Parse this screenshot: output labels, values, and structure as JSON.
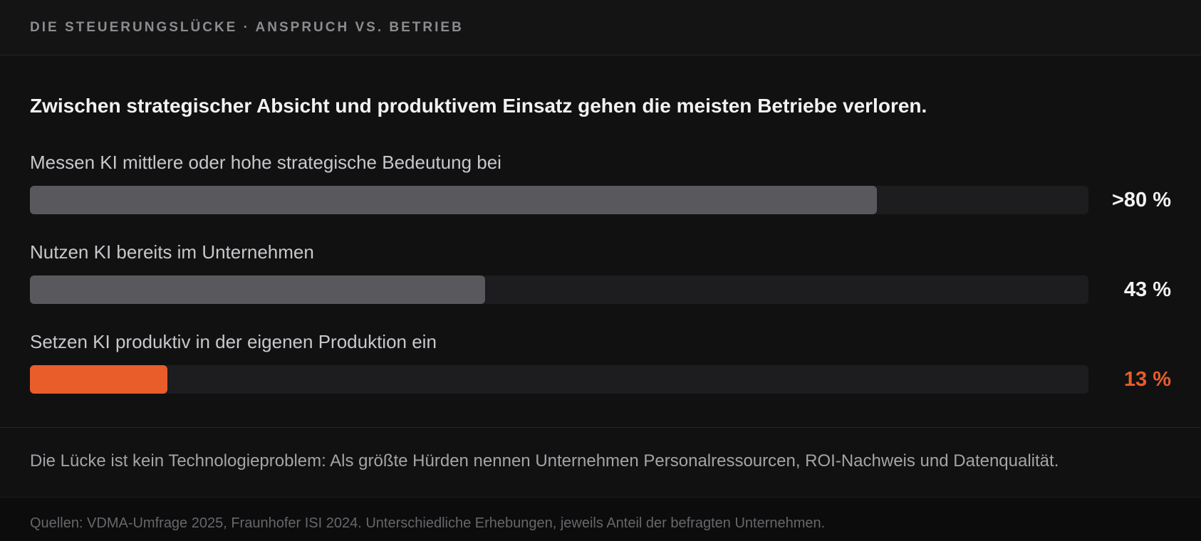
{
  "header": {
    "title": "DIE STEUERUNGSLÜCKE · ANSPRUCH VS. BETRIEB"
  },
  "headline": "Zwischen strategischer Absicht und produktivem Einsatz gehen die meisten Betriebe verloren.",
  "chart_data": {
    "type": "bar",
    "orientation": "horizontal",
    "title": "Zwischen strategischer Absicht und produktivem Einsatz gehen die meisten Betriebe verloren.",
    "categories": [
      "Messen KI mittlere oder hohe strategische Bedeutung bei",
      "Nutzen KI bereits im Unternehmen",
      "Setzen KI produktiv in der eigenen Produktion ein"
    ],
    "values": [
      80,
      43,
      13
    ],
    "value_labels": [
      ">80 %",
      "43 %",
      "13 %"
    ],
    "unit": "%",
    "xlim": [
      0,
      100
    ],
    "grid": false,
    "colors": [
      "#58585d",
      "#58585d",
      "#e85d2a"
    ],
    "value_label_colors": [
      "#f2f2f3",
      "#f2f2f3",
      "#e85d2a"
    ]
  },
  "note": "Die Lücke ist kein Technologieproblem: Als größte Hürden nennen Unternehmen Personalressourcen, ROI-Nachweis und Datenqualität.",
  "footer": {
    "source": "Quellen: VDMA-Umfrage 2025, Fraunhofer ISI 2024. Unterschiedliche Erhebungen, jeweils Anteil der befragten Unternehmen."
  }
}
